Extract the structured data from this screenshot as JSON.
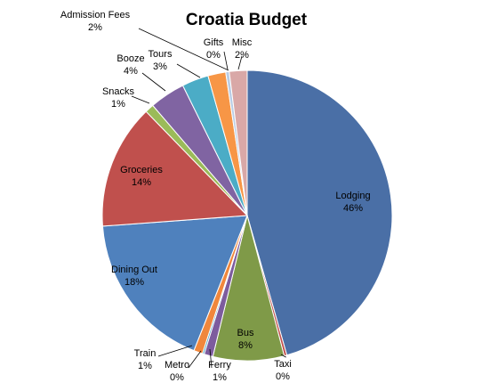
{
  "chart_data": {
    "type": "pie",
    "title": "Croatia Budget",
    "categories": [
      "Lodging",
      "Taxi",
      "Bus",
      "Ferry",
      "Metro",
      "Train",
      "Dining Out",
      "Groceries",
      "Snacks",
      "Booze",
      "Tours",
      "Admission Fees",
      "Gifts",
      "Misc"
    ],
    "values": [
      46,
      0.3,
      8,
      1,
      0.2,
      1,
      18,
      14,
      1,
      4,
      3,
      2,
      0.4,
      2
    ],
    "value_labels": [
      "46%",
      "0%",
      "8%",
      "1%",
      "0%",
      "1%",
      "18%",
      "14%",
      "1%",
      "4%",
      "3%",
      "2%",
      "0%",
      "2%"
    ],
    "colors": [
      "#4A6FA6",
      "#C0504D",
      "#7F9A48",
      "#7D5C9E",
      "#4BA3C3",
      "#F0873C",
      "#4F81BD",
      "#C0504D",
      "#9BBB59",
      "#8064A2",
      "#4BACC6",
      "#F79646",
      "#B9CDE5",
      "#D9A8A7"
    ],
    "legend": "none",
    "start_angle_deg": 0,
    "direction": "clockwise"
  }
}
